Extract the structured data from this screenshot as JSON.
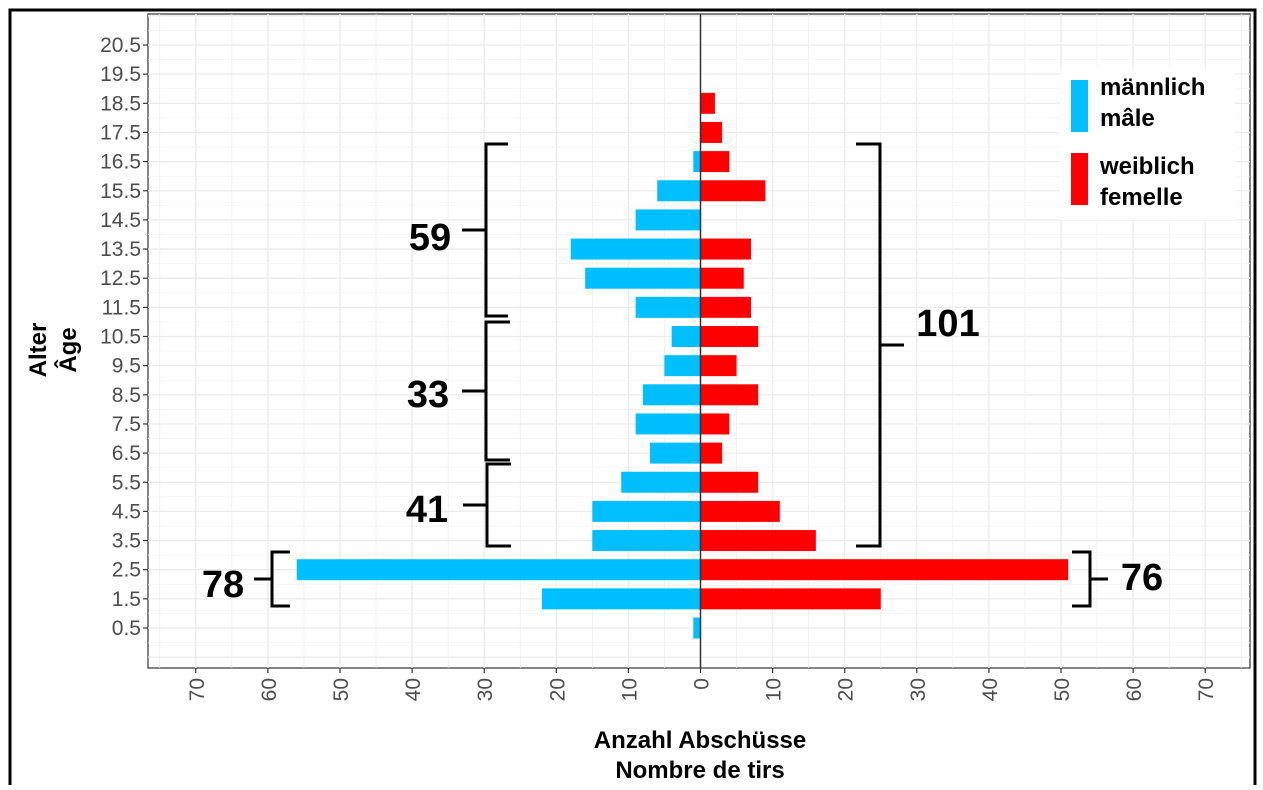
{
  "chart_data": {
    "type": "bar",
    "orientation": "horizontal-pyramid",
    "xlabel": [
      "Anzahl Abschüsse",
      "Nombre de tirs"
    ],
    "ylabel": [
      "Alter",
      "Âge"
    ],
    "xlim": [
      -70,
      70
    ],
    "x_ticks": [
      70,
      60,
      50,
      40,
      30,
      20,
      10,
      0,
      10,
      20,
      30,
      40,
      50,
      60,
      70
    ],
    "categories": [
      "0.5",
      "1.5",
      "2.5",
      "3.5",
      "4.5",
      "5.5",
      "6.5",
      "7.5",
      "8.5",
      "9.5",
      "10.5",
      "11.5",
      "12.5",
      "13.5",
      "14.5",
      "15.5",
      "16.5",
      "17.5",
      "18.5",
      "19.5",
      "20.5"
    ],
    "series": [
      {
        "name": [
          "männlich",
          "mâle"
        ],
        "color": "#00bfff",
        "side": "left",
        "values": [
          1,
          22,
          56,
          15,
          15,
          11,
          7,
          9,
          8,
          5,
          4,
          9,
          16,
          18,
          9,
          6,
          1,
          0,
          0,
          0,
          0
        ]
      },
      {
        "name": [
          "weiblich",
          "femelle"
        ],
        "color": "#ff0000",
        "side": "right",
        "values": [
          0,
          25,
          51,
          16,
          11,
          8,
          3,
          4,
          8,
          5,
          8,
          7,
          6,
          7,
          0,
          9,
          4,
          3,
          2,
          0,
          0
        ]
      }
    ],
    "grid": true,
    "legend_position": "top-right",
    "annotations": [
      {
        "label": "59",
        "side": "left"
      },
      {
        "label": "33",
        "side": "left"
      },
      {
        "label": "41",
        "side": "left"
      },
      {
        "label": "78",
        "side": "left"
      },
      {
        "label": "101",
        "side": "right"
      },
      {
        "label": "76",
        "side": "right"
      }
    ]
  }
}
